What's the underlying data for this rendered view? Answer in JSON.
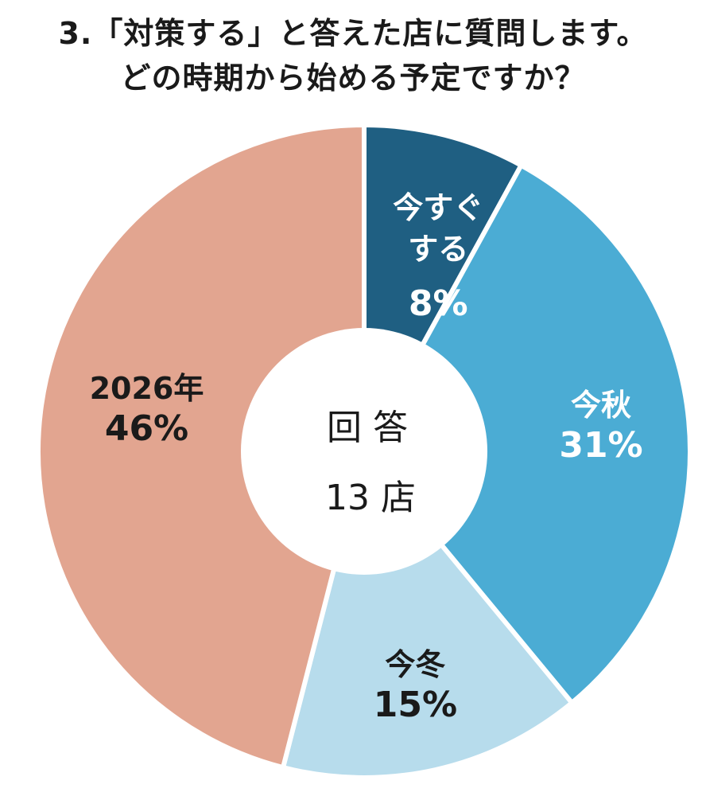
{
  "title": {
    "line1": "3.「対策する」と答えた店に質問します。",
    "line2": "どの時期から始める予定ですか？"
  },
  "center": {
    "line1": "回 答",
    "line2": "13 店"
  },
  "chart_data": {
    "type": "pie",
    "title": "3.「対策する」と答えた店に質問します。どの時期から始める予定ですか？",
    "categories": [
      "今すぐする",
      "今秋",
      "今冬",
      "2026年"
    ],
    "values": [
      8,
      31,
      15,
      46
    ],
    "value_labels": [
      "8%",
      "31%",
      "15%",
      "46%"
    ],
    "label_lines": [
      [
        "今すぐ",
        "する"
      ],
      [
        "今秋"
      ],
      [
        "今冬"
      ],
      [
        "2026年"
      ]
    ],
    "colors": [
      "#1f5f82",
      "#4bacd4",
      "#b7dcec",
      "#e2a590"
    ],
    "label_colors": [
      "#ffffff",
      "#ffffff",
      "#1a1a1a",
      "#1a1a1a"
    ],
    "unit": "%",
    "donut": true,
    "legend": "none"
  }
}
